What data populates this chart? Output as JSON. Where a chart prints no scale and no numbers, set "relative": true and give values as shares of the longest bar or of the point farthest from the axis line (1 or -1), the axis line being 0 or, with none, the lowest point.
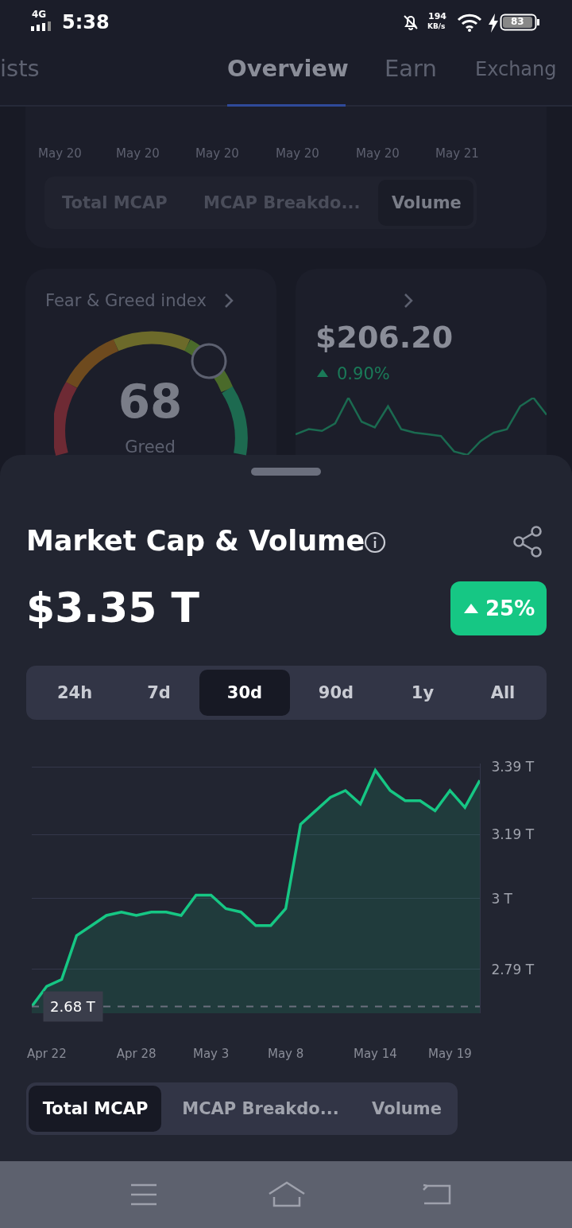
{
  "chart_data": [
    {
      "type": "area",
      "title": "Market Cap & Volume",
      "subtitle": "$3.35 T",
      "x": [
        "--04-21",
        "--04-22",
        "--04-23",
        "--04-24",
        "--04-25",
        "--04-26",
        "--04-27",
        "--04-28",
        "--04-29",
        "--04-30",
        "--05-01",
        "--05-02",
        "--05-03",
        "--05-04",
        "--05-05",
        "--05-06",
        "--05-07",
        "--05-08",
        "--05-09",
        "--05-10",
        "--05-11",
        "--05-12",
        "--05-13",
        "--05-14",
        "--05-15",
        "--05-16",
        "--05-17",
        "--05-18",
        "--05-19",
        "--05-20",
        "--05-21"
      ],
      "values": [
        2.68,
        2.74,
        2.76,
        2.89,
        2.92,
        2.95,
        2.96,
        2.95,
        2.96,
        2.96,
        2.95,
        3.01,
        3.01,
        2.97,
        2.96,
        2.92,
        2.92,
        2.97,
        3.22,
        3.26,
        3.3,
        3.32,
        3.28,
        3.38,
        3.32,
        3.29,
        3.29,
        3.26,
        3.32,
        3.27,
        3.35
      ],
      "color": "#16c784",
      "line_style": "solid",
      "marker": "none",
      "grid": "y",
      "xlim": [
        "--04-21",
        "--05-21"
      ],
      "xticks": [
        {
          "value": "--04-22",
          "label": "Apr 22"
        },
        {
          "value": "--04-28",
          "label": "Apr 28"
        },
        {
          "value": "--05-03",
          "label": "May 3"
        },
        {
          "value": "--05-08",
          "label": "May 8"
        },
        {
          "value": "--05-14",
          "label": "May 14"
        },
        {
          "value": "--05-19",
          "label": "May 19"
        }
      ],
      "ylim": [
        2.66,
        3.4
      ],
      "yticks": [
        {
          "value": 2.79,
          "label": "2.79 T"
        },
        {
          "value": 3.0,
          "label": "3 T"
        },
        {
          "value": 3.19,
          "label": "3.19 T"
        },
        {
          "value": 3.39,
          "label": "3.39 T"
        }
      ],
      "ref_lines": [
        {
          "axis": "y",
          "value": 2.68,
          "label": "2.68 T",
          "color": "#6b6f7d",
          "line_style": "dashed"
        }
      ],
      "annotations": [
        "4G",
        "5:38",
        "194",
        "KB/s",
        "83",
        "ists",
        "Overview",
        "Earn",
        "Exchang",
        "May 20",
        "May 20",
        "May 20",
        "May 20",
        "May 20",
        "May 21",
        "Total MCAP",
        "MCAP Breakdo...",
        "Volume",
        "Fear & Greed index",
        "68",
        "Greed",
        "$206.20",
        "0.90%",
        "25%",
        "24h",
        "7d",
        "30d",
        "90d",
        "1y",
        "All",
        "Total MCAP",
        "MCAP Breakdo...",
        "Volume"
      ]
    },
    {
      "type": "line",
      "relative": true,
      "color": "#1b6a50",
      "categories": [
        null,
        null,
        null,
        null,
        null,
        null,
        null,
        null,
        null,
        null,
        null,
        null,
        null,
        null,
        null,
        null,
        null,
        null,
        null,
        null
      ],
      "values": [
        0.36,
        0.45,
        0.42,
        0.55,
        1,
        0.58,
        0.48,
        0.85,
        0.45,
        0.39,
        0.36,
        0.33,
        0.06,
        0,
        0.24,
        0.39,
        0.45,
        0.85,
        1,
        0.7
      ]
    }
  ]
}
